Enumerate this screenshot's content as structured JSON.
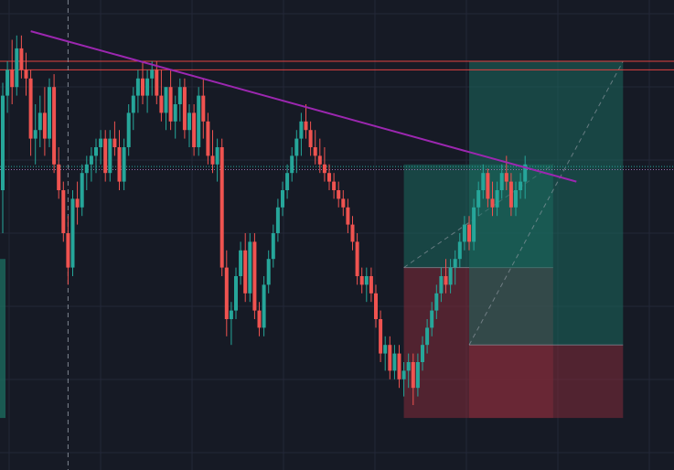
{
  "colors": {
    "background": "#161a25",
    "grid": "#232838",
    "bull": "#26a69a",
    "bear": "#ef5350",
    "trendline": "#9c27b0",
    "resistance": "#e0413f",
    "target_zone": "#1b6a5e",
    "stop_zone": "#7a2a38",
    "crosshair": "#9aa0ab",
    "price_line_a": "#26a69a",
    "price_line_b": "#9c6fb0"
  },
  "chart_data": {
    "type": "candlestick",
    "ylim": [
      0,
      100
    ],
    "xlim": [
      0,
      123
    ],
    "grid": true,
    "candles": [
      {
        "o": 60,
        "h": 85,
        "l": 50,
        "c": 82
      },
      {
        "o": 82,
        "h": 90,
        "l": 78,
        "c": 88
      },
      {
        "o": 88,
        "h": 95,
        "l": 80,
        "c": 84
      },
      {
        "o": 84,
        "h": 96,
        "l": 82,
        "c": 93
      },
      {
        "o": 93,
        "h": 96,
        "l": 86,
        "c": 88
      },
      {
        "o": 88,
        "h": 92,
        "l": 82,
        "c": 86
      },
      {
        "o": 86,
        "h": 88,
        "l": 68,
        "c": 72
      },
      {
        "o": 72,
        "h": 80,
        "l": 66,
        "c": 74
      },
      {
        "o": 74,
        "h": 82,
        "l": 70,
        "c": 78
      },
      {
        "o": 78,
        "h": 84,
        "l": 68,
        "c": 72
      },
      {
        "o": 72,
        "h": 86,
        "l": 70,
        "c": 84
      },
      {
        "o": 84,
        "h": 87,
        "l": 64,
        "c": 66
      },
      {
        "o": 66,
        "h": 70,
        "l": 58,
        "c": 60
      },
      {
        "o": 60,
        "h": 62,
        "l": 48,
        "c": 50
      },
      {
        "o": 50,
        "h": 54,
        "l": 38,
        "c": 42
      },
      {
        "o": 42,
        "h": 60,
        "l": 40,
        "c": 58
      },
      {
        "o": 58,
        "h": 62,
        "l": 52,
        "c": 56
      },
      {
        "o": 56,
        "h": 66,
        "l": 54,
        "c": 64
      },
      {
        "o": 64,
        "h": 68,
        "l": 60,
        "c": 66
      },
      {
        "o": 66,
        "h": 70,
        "l": 62,
        "c": 68
      },
      {
        "o": 68,
        "h": 72,
        "l": 64,
        "c": 70
      },
      {
        "o": 70,
        "h": 74,
        "l": 66,
        "c": 72
      },
      {
        "o": 72,
        "h": 74,
        "l": 62,
        "c": 64
      },
      {
        "o": 64,
        "h": 74,
        "l": 62,
        "c": 72
      },
      {
        "o": 72,
        "h": 76,
        "l": 68,
        "c": 70
      },
      {
        "o": 70,
        "h": 74,
        "l": 60,
        "c": 62
      },
      {
        "o": 62,
        "h": 72,
        "l": 60,
        "c": 70
      },
      {
        "o": 70,
        "h": 80,
        "l": 68,
        "c": 78
      },
      {
        "o": 78,
        "h": 84,
        "l": 74,
        "c": 82
      },
      {
        "o": 82,
        "h": 88,
        "l": 78,
        "c": 86
      },
      {
        "o": 86,
        "h": 90,
        "l": 80,
        "c": 82
      },
      {
        "o": 82,
        "h": 88,
        "l": 78,
        "c": 86
      },
      {
        "o": 86,
        "h": 90,
        "l": 82,
        "c": 88
      },
      {
        "o": 88,
        "h": 90,
        "l": 80,
        "c": 82
      },
      {
        "o": 82,
        "h": 88,
        "l": 76,
        "c": 78
      },
      {
        "o": 78,
        "h": 84,
        "l": 74,
        "c": 84
      },
      {
        "o": 84,
        "h": 88,
        "l": 74,
        "c": 76
      },
      {
        "o": 76,
        "h": 82,
        "l": 72,
        "c": 80
      },
      {
        "o": 80,
        "h": 86,
        "l": 76,
        "c": 84
      },
      {
        "o": 84,
        "h": 86,
        "l": 72,
        "c": 74
      },
      {
        "o": 74,
        "h": 80,
        "l": 70,
        "c": 78
      },
      {
        "o": 78,
        "h": 80,
        "l": 68,
        "c": 70
      },
      {
        "o": 70,
        "h": 84,
        "l": 68,
        "c": 82
      },
      {
        "o": 82,
        "h": 86,
        "l": 72,
        "c": 76
      },
      {
        "o": 76,
        "h": 78,
        "l": 66,
        "c": 68
      },
      {
        "o": 68,
        "h": 74,
        "l": 64,
        "c": 66
      },
      {
        "o": 66,
        "h": 72,
        "l": 62,
        "c": 70
      },
      {
        "o": 70,
        "h": 72,
        "l": 40,
        "c": 42
      },
      {
        "o": 42,
        "h": 46,
        "l": 26,
        "c": 30
      },
      {
        "o": 30,
        "h": 34,
        "l": 24,
        "c": 32
      },
      {
        "o": 32,
        "h": 42,
        "l": 30,
        "c": 40
      },
      {
        "o": 40,
        "h": 48,
        "l": 38,
        "c": 46
      },
      {
        "o": 46,
        "h": 50,
        "l": 34,
        "c": 36
      },
      {
        "o": 36,
        "h": 50,
        "l": 34,
        "c": 48
      },
      {
        "o": 48,
        "h": 50,
        "l": 30,
        "c": 32
      },
      {
        "o": 32,
        "h": 34,
        "l": 26,
        "c": 28
      },
      {
        "o": 28,
        "h": 40,
        "l": 26,
        "c": 38
      },
      {
        "o": 38,
        "h": 46,
        "l": 36,
        "c": 44
      },
      {
        "o": 44,
        "h": 52,
        "l": 42,
        "c": 50
      },
      {
        "o": 50,
        "h": 58,
        "l": 48,
        "c": 56
      },
      {
        "o": 56,
        "h": 62,
        "l": 54,
        "c": 60
      },
      {
        "o": 60,
        "h": 66,
        "l": 58,
        "c": 64
      },
      {
        "o": 64,
        "h": 70,
        "l": 62,
        "c": 68
      },
      {
        "o": 68,
        "h": 74,
        "l": 64,
        "c": 72
      },
      {
        "o": 72,
        "h": 78,
        "l": 68,
        "c": 76
      },
      {
        "o": 76,
        "h": 80,
        "l": 72,
        "c": 74
      },
      {
        "o": 74,
        "h": 76,
        "l": 68,
        "c": 70
      },
      {
        "o": 70,
        "h": 74,
        "l": 66,
        "c": 68
      },
      {
        "o": 68,
        "h": 72,
        "l": 64,
        "c": 66
      },
      {
        "o": 66,
        "h": 70,
        "l": 62,
        "c": 64
      },
      {
        "o": 64,
        "h": 66,
        "l": 60,
        "c": 62
      },
      {
        "o": 62,
        "h": 64,
        "l": 58,
        "c": 60
      },
      {
        "o": 60,
        "h": 62,
        "l": 56,
        "c": 58
      },
      {
        "o": 58,
        "h": 60,
        "l": 54,
        "c": 56
      },
      {
        "o": 56,
        "h": 58,
        "l": 50,
        "c": 52
      },
      {
        "o": 52,
        "h": 54,
        "l": 46,
        "c": 48
      },
      {
        "o": 48,
        "h": 50,
        "l": 38,
        "c": 40
      },
      {
        "o": 40,
        "h": 42,
        "l": 36,
        "c": 38
      },
      {
        "o": 38,
        "h": 42,
        "l": 34,
        "c": 40
      },
      {
        "o": 40,
        "h": 42,
        "l": 34,
        "c": 36
      },
      {
        "o": 36,
        "h": 38,
        "l": 28,
        "c": 30
      },
      {
        "o": 30,
        "h": 32,
        "l": 20,
        "c": 22
      },
      {
        "o": 22,
        "h": 26,
        "l": 18,
        "c": 24
      },
      {
        "o": 24,
        "h": 26,
        "l": 16,
        "c": 18
      },
      {
        "o": 18,
        "h": 24,
        "l": 16,
        "c": 22
      },
      {
        "o": 22,
        "h": 24,
        "l": 14,
        "c": 16
      },
      {
        "o": 16,
        "h": 20,
        "l": 12,
        "c": 18
      },
      {
        "o": 18,
        "h": 22,
        "l": 14,
        "c": 20
      },
      {
        "o": 20,
        "h": 22,
        "l": 10,
        "c": 14
      },
      {
        "o": 14,
        "h": 22,
        "l": 12,
        "c": 20
      },
      {
        "o": 20,
        "h": 26,
        "l": 18,
        "c": 24
      },
      {
        "o": 24,
        "h": 30,
        "l": 22,
        "c": 28
      },
      {
        "o": 28,
        "h": 34,
        "l": 26,
        "c": 32
      },
      {
        "o": 32,
        "h": 38,
        "l": 30,
        "c": 36
      },
      {
        "o": 36,
        "h": 42,
        "l": 34,
        "c": 40
      },
      {
        "o": 40,
        "h": 44,
        "l": 36,
        "c": 38
      },
      {
        "o": 38,
        "h": 44,
        "l": 36,
        "c": 42
      },
      {
        "o": 42,
        "h": 46,
        "l": 38,
        "c": 44
      },
      {
        "o": 44,
        "h": 50,
        "l": 42,
        "c": 48
      },
      {
        "o": 48,
        "h": 54,
        "l": 46,
        "c": 52
      },
      {
        "o": 52,
        "h": 54,
        "l": 46,
        "c": 48
      },
      {
        "o": 48,
        "h": 58,
        "l": 46,
        "c": 56
      },
      {
        "o": 56,
        "h": 62,
        "l": 54,
        "c": 60
      },
      {
        "o": 60,
        "h": 66,
        "l": 58,
        "c": 64
      },
      {
        "o": 64,
        "h": 65,
        "l": 56,
        "c": 58
      },
      {
        "o": 58,
        "h": 62,
        "l": 54,
        "c": 56
      },
      {
        "o": 56,
        "h": 62,
        "l": 54,
        "c": 60
      },
      {
        "o": 60,
        "h": 66,
        "l": 58,
        "c": 64
      },
      {
        "o": 64,
        "h": 68,
        "l": 60,
        "c": 62
      },
      {
        "o": 62,
        "h": 64,
        "l": 54,
        "c": 56
      },
      {
        "o": 56,
        "h": 62,
        "l": 54,
        "c": 60
      },
      {
        "o": 60,
        "h": 64,
        "l": 58,
        "c": 62
      },
      {
        "o": 62,
        "h": 68,
        "l": 58,
        "c": 66
      }
    ],
    "trendline": {
      "from": [
        6,
        97
      ],
      "to": [
        123,
        62
      ]
    },
    "resistance_levels": [
      90,
      88
    ],
    "price_lines": [
      65.5,
      64.8
    ],
    "crosshair_x": 14,
    "positions": [
      {
        "name": "long-position-inner",
        "x0": 86,
        "x1": 118,
        "target_top": 66,
        "entry": 42,
        "stop": 7
      },
      {
        "name": "long-position-outer",
        "x0": 100,
        "x1": 133,
        "target_top": 90,
        "entry": 24,
        "stop": 7
      }
    ]
  }
}
